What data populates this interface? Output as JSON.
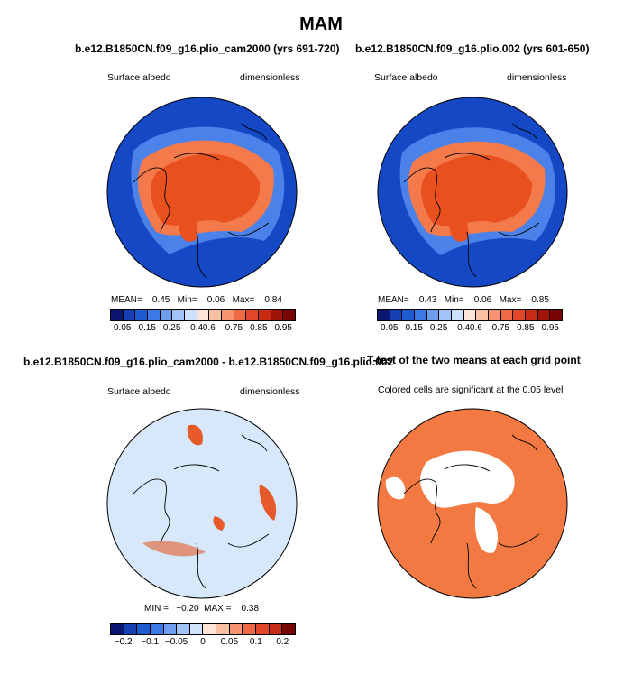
{
  "figure": {
    "title": "MAM"
  },
  "panels": [
    {
      "title": "b.e12.B1850CN.f09_g16.plio_cam2000 (yrs 691-720)",
      "left_label": "Surface albedo",
      "right_label": "dimensionless",
      "stats": {
        "mean_label": "MEAN=",
        "mean": "0.45",
        "min_label": "Min=",
        "min": "0.06",
        "max_label": "Max=",
        "max": "0.84"
      }
    },
    {
      "title": "b.e12.B1850CN.f09_g16.plio.002 (yrs 601-650)",
      "left_label": "Surface albedo",
      "right_label": "dimensionless",
      "stats": {
        "mean_label": "MEAN=",
        "mean": "0.43",
        "min_label": "Min=",
        "min": "0.06",
        "max_label": "Max=",
        "max": "0.85"
      }
    },
    {
      "title": "b.e12.B1850CN.f09_g16.plio_cam2000 - b.e12.B1850CN.f09_g16.plio.002",
      "left_label": "Surface albedo",
      "right_label": "dimensionless",
      "stats_text": "MIN =   −0.20  MAX =    0.38"
    },
    {
      "title": "T-test of the two means at each grid point",
      "note": "Colored cells are significant at the 0.05 level"
    }
  ],
  "colorbars": {
    "albedo": {
      "colors": [
        "#0a1670",
        "#1440b4",
        "#1e5ad0",
        "#3c78e6",
        "#6e9ef0",
        "#a0c4f8",
        "#cce0fc",
        "#fce4d6",
        "#fcc0a4",
        "#f89470",
        "#f06a46",
        "#e04628",
        "#c82a14",
        "#a01408",
        "#780404"
      ],
      "tick_labels": [
        "0.05",
        "0.15",
        "0.25",
        "0.4",
        "0.6",
        "0.75",
        "0.85",
        "0.95"
      ]
    },
    "difference": {
      "colors": [
        "#0a1670",
        "#1440b4",
        "#1e5ad0",
        "#3c78e6",
        "#6e9ef0",
        "#a0c4f8",
        "#d0e4fc",
        "#fce4d6",
        "#fcc0a4",
        "#f89470",
        "#f06a46",
        "#e04628",
        "#c82a14",
        "#780404"
      ],
      "tick_labels": [
        "−0.2",
        "−0.1",
        "−0.05",
        "0",
        "0.05",
        "0.1",
        "0.2"
      ]
    }
  },
  "map_colors": {
    "ocean_low": "#1448c4",
    "ocean_mid": "#4a82ea",
    "ice_high": "#e8501e",
    "ice_mid": "#f47a4c",
    "diff_bg": "#d6e8fa",
    "diff_warm": "#e65a2a",
    "sig": "#f27a42"
  }
}
